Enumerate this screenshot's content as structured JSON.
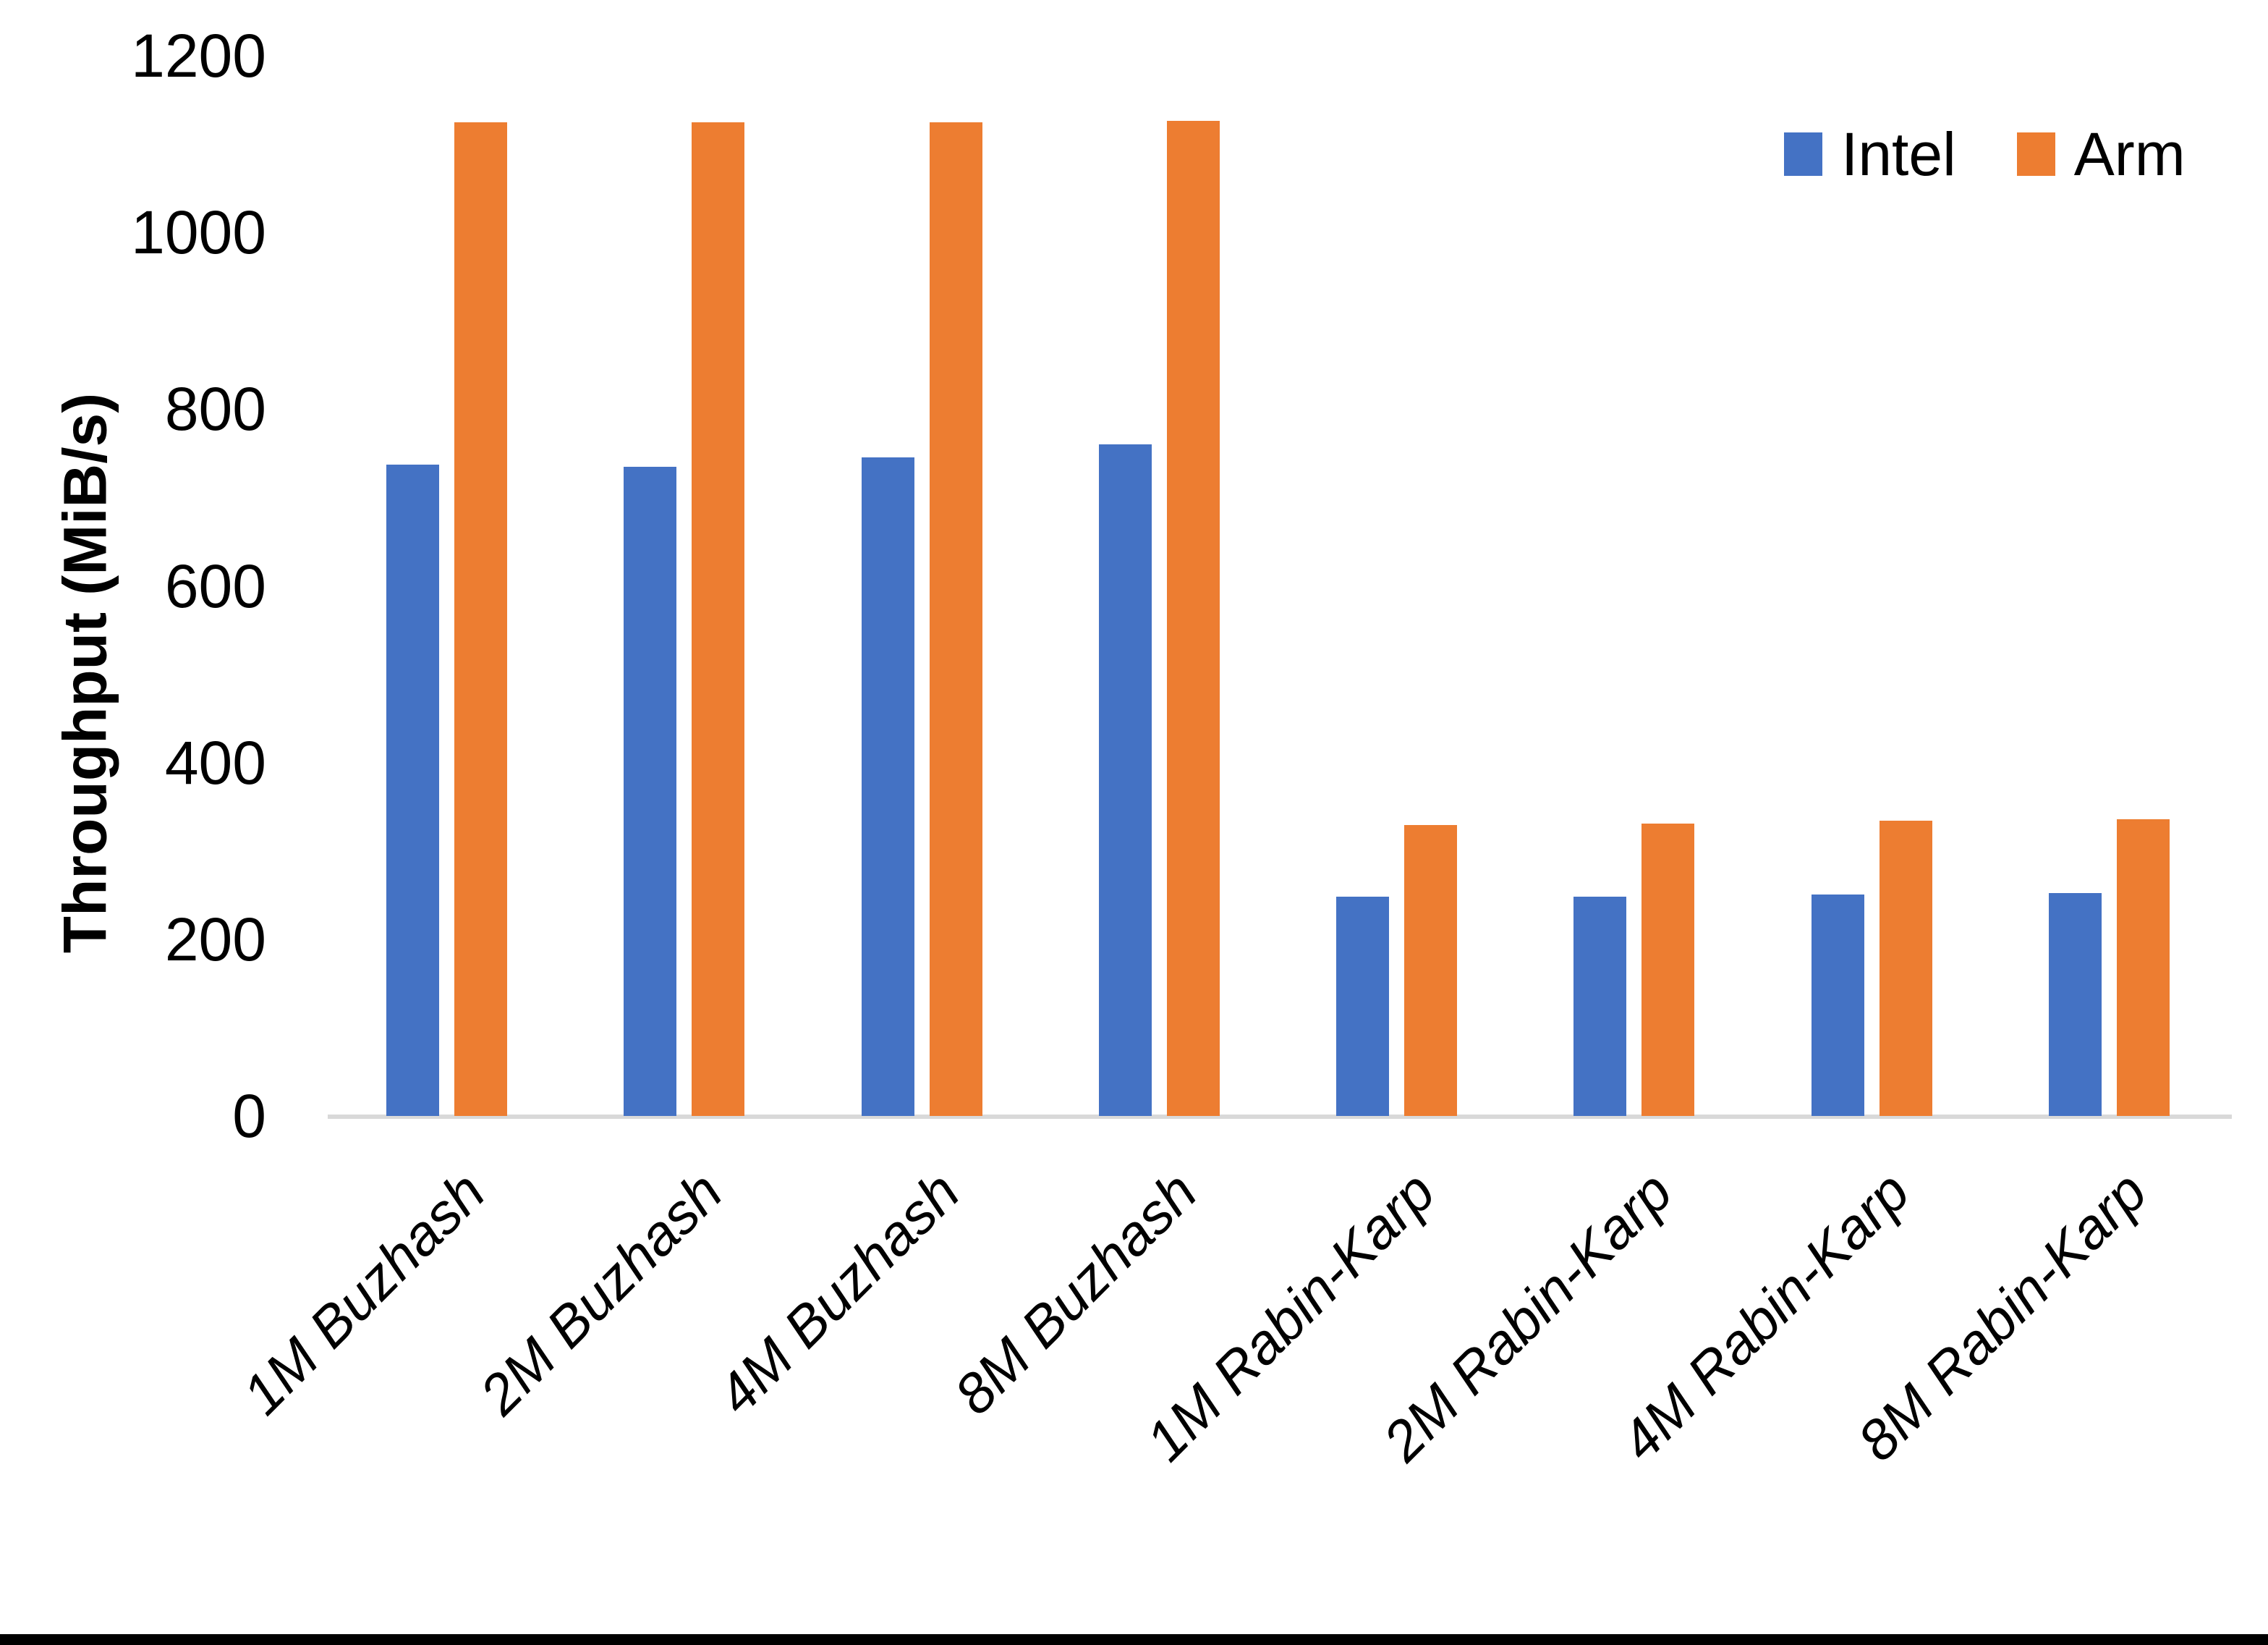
{
  "chart_data": {
    "type": "bar",
    "title": "",
    "xlabel": "",
    "ylabel": "Throughput (MiB/s)",
    "ylim": [
      0,
      1200
    ],
    "yticks": [
      0,
      200,
      400,
      600,
      800,
      1000,
      1200
    ],
    "grid": false,
    "legend_position": "top-right",
    "categories": [
      "1M Buzhash",
      "2M Buzhash",
      "4M Buzhash",
      "8M Buzhash",
      "1M Rabin-Karp",
      "2M Rabin-Karp",
      "4M Rabin-Karp",
      "8M Rabin-Karp"
    ],
    "series": [
      {
        "name": "Intel",
        "color": "#4472C4",
        "values": [
          737,
          735,
          745,
          760,
          248,
          248,
          251,
          252
        ]
      },
      {
        "name": "Arm",
        "color": "#ED7D31",
        "values": [
          1125,
          1125,
          1125,
          1126,
          329,
          331,
          334,
          336
        ]
      }
    ]
  },
  "colors": {
    "background": "#FFFFFF",
    "axis_line": "#D9D9D9",
    "text": "#000000",
    "bottom_bar": "#000000"
  }
}
